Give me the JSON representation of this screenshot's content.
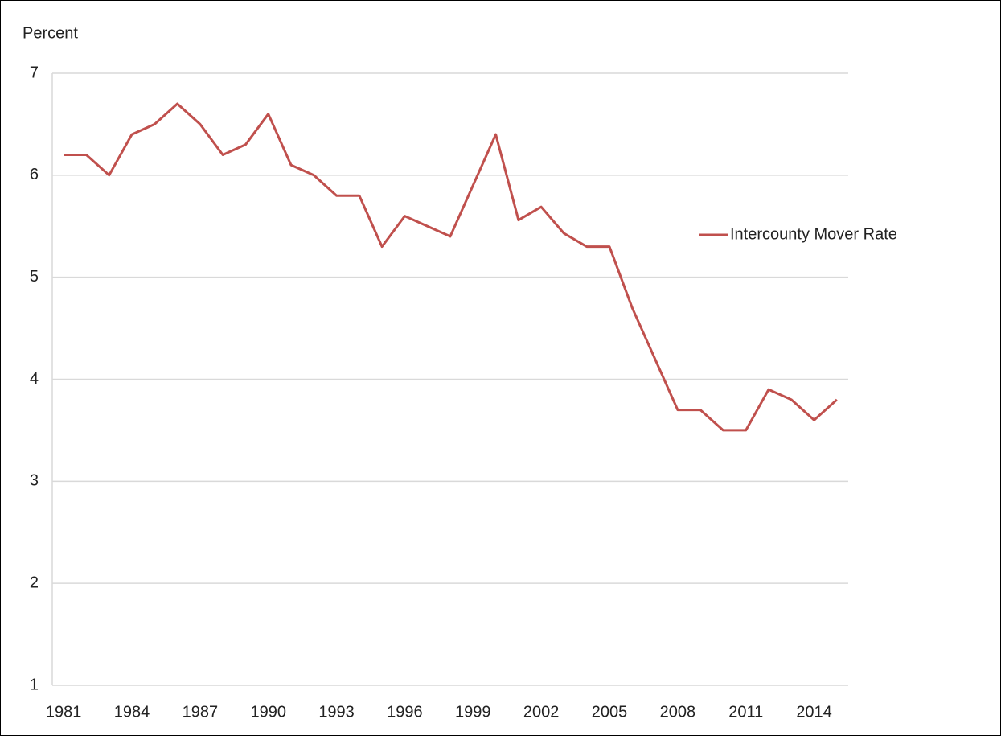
{
  "chart_data": {
    "type": "line",
    "y_label": "Percent",
    "categories": [
      "1981",
      null,
      null,
      "1984",
      null,
      null,
      "1987",
      null,
      null,
      "1990",
      null,
      null,
      "1993",
      null,
      null,
      "1996",
      null,
      null,
      "1999",
      null,
      null,
      "2002",
      null,
      null,
      "2005",
      null,
      null,
      "2008",
      null,
      null,
      "2011",
      null,
      null,
      "2014",
      null
    ],
    "series": [
      {
        "name": "Intercounty Mover Rate",
        "color": "#c0504d",
        "values": [
          6.2,
          6.2,
          6.0,
          6.4,
          6.5,
          6.7,
          6.5,
          6.2,
          6.3,
          6.6,
          6.1,
          6.0,
          5.8,
          5.8,
          5.3,
          5.6,
          5.5,
          5.4,
          5.9,
          6.4,
          5.56,
          5.69,
          5.43,
          5.3,
          5.3,
          4.7,
          4.2,
          3.7,
          3.7,
          3.5,
          3.5,
          3.9,
          3.8,
          3.6,
          3.8
        ]
      }
    ],
    "ylim": [
      1,
      7
    ],
    "yticks": [
      1,
      2,
      3,
      4,
      5,
      6,
      7
    ],
    "grid": true,
    "legend": "right"
  }
}
